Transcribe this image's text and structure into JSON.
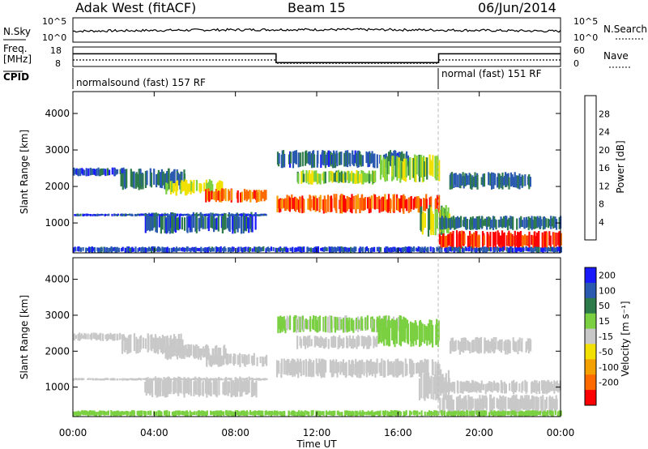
{
  "header": {
    "radar": "Adak West (fitACF)",
    "beam": "Beam 15",
    "date": "06/Jun/2014"
  },
  "nsky_panel": {
    "left_label": "N.Sky",
    "right_label": "N.Search",
    "ticks_left": [
      "10^5",
      "10^0"
    ],
    "ticks_right": [
      "10^5",
      "10^0"
    ]
  },
  "freq_panel": {
    "left_label_1": "Freq.",
    "left_label_2": "[MHz]",
    "right_label": "Nave",
    "ticks_left": [
      "18",
      "8"
    ],
    "ticks_right": [
      "60",
      "0"
    ],
    "freq_segments": [
      {
        "start_h": 0,
        "end_h": 10,
        "value": 14.5
      },
      {
        "start_h": 10,
        "end_h": 18,
        "value": 10.0
      },
      {
        "start_h": 18,
        "end_h": 24,
        "value": 14.5
      }
    ]
  },
  "cpid_panel": {
    "label": "CPID",
    "segments": [
      {
        "start_h": 0,
        "end_h": 18,
        "text": "normalsound (fast) 157 RF"
      },
      {
        "start_h": 18,
        "end_h": 24,
        "text": "normal (fast) 151 RF"
      }
    ]
  },
  "axes": {
    "xlabel": "Time UT",
    "ylabel_power": "Slant Range [km]",
    "ylabel_velocity": "Slant Range [km]",
    "x_ticks": [
      "00:00",
      "04:00",
      "08:00",
      "12:00",
      "16:00",
      "20:00",
      "00:00"
    ],
    "y_ticks": [
      "1000",
      "2000",
      "3000",
      "4000"
    ]
  },
  "colorbars": {
    "power": {
      "title": "Power [dB]",
      "labels": [
        "4",
        "8",
        "12",
        "16",
        "20",
        "24",
        "28"
      ],
      "colors": [
        "#1a1aff",
        "#2a5ab0",
        "#2d7a4a",
        "#7ad040",
        "#f2e000",
        "#f4a000",
        "#ff6a00",
        "#ff0000"
      ]
    },
    "velocity": {
      "title": "Velocity [m s⁻¹]",
      "labels": [
        "200",
        "100",
        "50",
        "15",
        "-15",
        "-50",
        "-100",
        "-200"
      ],
      "colors": [
        "#1a1aff",
        "#2a5ab0",
        "#2d7a4a",
        "#7ad040",
        "#c8c8c8",
        "#f2e000",
        "#f4a000",
        "#ff6a00",
        "#ff0000"
      ]
    }
  },
  "chart_data": {
    "type": "heatmap",
    "title": "Adak West (fitACF) Beam 15 06/Jun/2014",
    "xlabel": "Time UT",
    "ylabel": "Slant Range [km]",
    "xlim": [
      0,
      24
    ],
    "ylim": [
      180,
      4600
    ],
    "panels": [
      "power",
      "velocity"
    ],
    "echo_regions": [
      {
        "t0": 0.0,
        "t1": 2.5,
        "r0": 2280,
        "r1": 2520,
        "power": 6,
        "velocity": 0
      },
      {
        "t0": 2.3,
        "t1": 5.5,
        "r0": 1900,
        "r1": 2500,
        "power": 8,
        "velocity": 0
      },
      {
        "t0": 4.5,
        "t1": 7.5,
        "r0": 1750,
        "r1": 2200,
        "power": 16,
        "velocity": 0
      },
      {
        "t0": 6.5,
        "t1": 9.5,
        "r0": 1550,
        "r1": 1950,
        "power": 26,
        "velocity": 0
      },
      {
        "t0": 3.5,
        "t1": 9.0,
        "r0": 700,
        "r1": 1300,
        "power": 7,
        "velocity": -5
      },
      {
        "t0": 0.0,
        "t1": 9.5,
        "r0": 1180,
        "r1": 1260,
        "power": 5,
        "velocity": 0
      },
      {
        "t0": 10.0,
        "t1": 18.0,
        "r0": 1250,
        "r1": 1800,
        "power": 27,
        "velocity": 0
      },
      {
        "t0": 11.0,
        "t1": 15.0,
        "r0": 2050,
        "r1": 2450,
        "power": 14,
        "velocity": 0
      },
      {
        "t0": 10.0,
        "t1": 16.5,
        "r0": 2500,
        "r1": 3000,
        "power": 7,
        "velocity": 20
      },
      {
        "t0": 15.0,
        "t1": 18.0,
        "r0": 2100,
        "r1": 2900,
        "power": 14,
        "velocity": 30
      },
      {
        "t0": 17.0,
        "t1": 18.5,
        "r0": 600,
        "r1": 1500,
        "power": 14,
        "velocity": -5
      },
      {
        "t0": 18.0,
        "t1": 24.0,
        "r0": 250,
        "r1": 800,
        "power": 30,
        "velocity": 0
      },
      {
        "t0": 18.0,
        "t1": 24.0,
        "r0": 800,
        "r1": 1200,
        "power": 8,
        "velocity": 0
      },
      {
        "t0": 18.5,
        "t1": 22.5,
        "r0": 1900,
        "r1": 2400,
        "power": 8,
        "velocity": 0
      },
      {
        "t0": 0.0,
        "t1": 24.0,
        "r0": 180,
        "r1": 360,
        "power": 5,
        "velocity": 40
      }
    ]
  }
}
